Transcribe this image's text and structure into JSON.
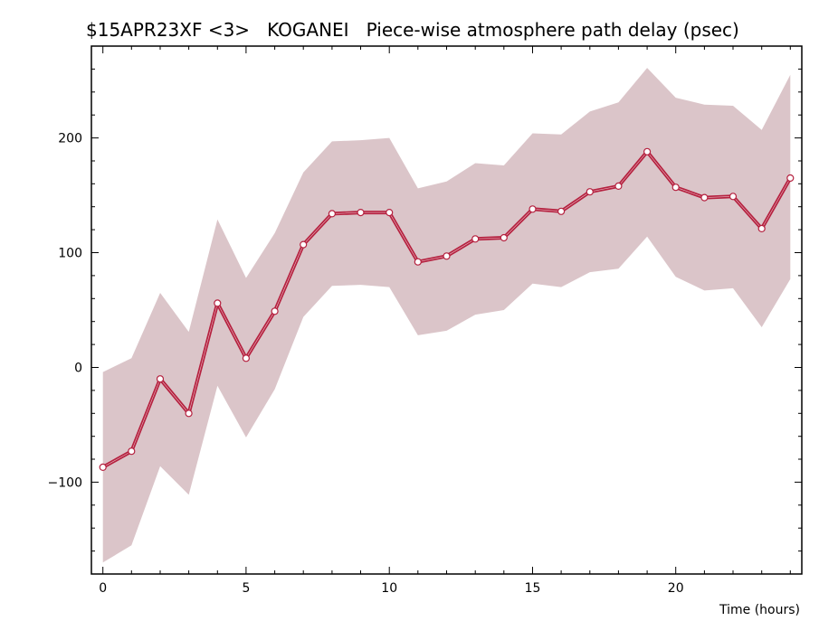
{
  "colors": {
    "band": "#dbc5c9",
    "line": "#b5213f",
    "marker_fill": "#ffffff",
    "axis": "#000000",
    "background": "#ffffff"
  },
  "chart_data": {
    "type": "line",
    "title": "$15APR23XF <3>   KOGANEI   Piece-wise atmosphere path delay (psec)",
    "xlabel": "Time (hours)",
    "ylabel": "",
    "xlim": [
      -0.4,
      24.4
    ],
    "ylim": [
      -180,
      280
    ],
    "x_ticks": [
      0,
      5,
      10,
      15,
      20
    ],
    "y_ticks": [
      -100,
      0,
      100,
      200
    ],
    "x_minor_step": 1,
    "y_minor_step": 20,
    "grid": false,
    "legend": "none",
    "x": [
      0,
      1,
      2,
      3,
      4,
      5,
      6,
      7,
      8,
      9,
      10,
      11,
      12,
      13,
      14,
      15,
      16,
      17,
      18,
      19,
      20,
      21,
      22,
      23,
      24
    ],
    "series": [
      {
        "values": [
          -87,
          -73,
          -10,
          -40,
          56,
          8,
          49,
          107,
          134,
          135,
          135,
          92,
          97,
          112,
          113,
          138,
          136,
          153,
          158,
          188,
          157,
          148,
          149,
          121,
          165
        ],
        "lower": [
          -170,
          -155,
          -86,
          -111,
          -16,
          -61,
          -19,
          44,
          71,
          72,
          70,
          28,
          32,
          46,
          50,
          73,
          70,
          83,
          86,
          114,
          79,
          67,
          69,
          35,
          77
        ],
        "upper": [
          -4,
          8,
          65,
          31,
          129,
          78,
          117,
          170,
          197,
          198,
          200,
          156,
          162,
          178,
          176,
          204,
          203,
          223,
          231,
          261,
          235,
          229,
          228,
          207,
          255
        ]
      }
    ]
  }
}
